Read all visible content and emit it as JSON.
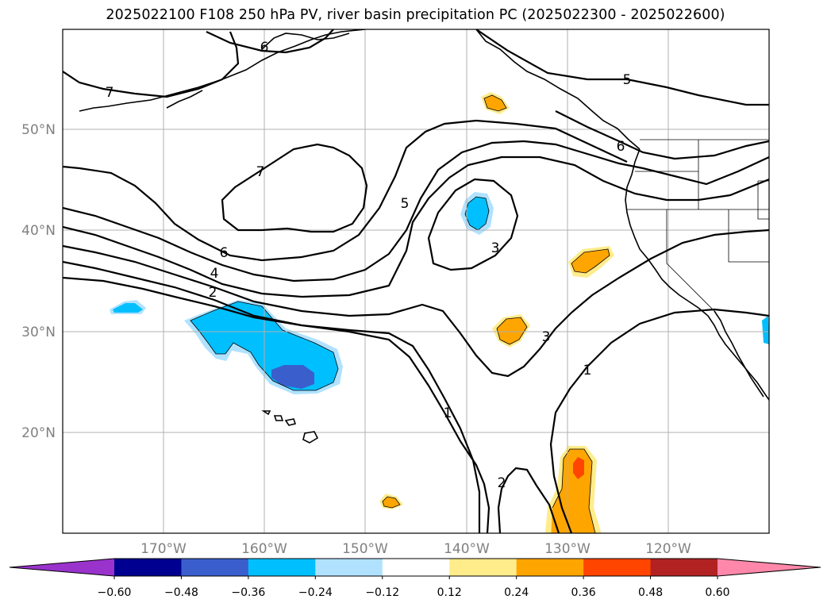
{
  "title": "2025022100 F108 250 hPa PV, river basin precipitation PC (2025022300 - 2025022600)",
  "lat_labels": [
    "50°N",
    "40°N",
    "30°N",
    "20°N"
  ],
  "lon_labels": [
    "170°W",
    "160°W",
    "150°W",
    "140°W",
    "130°W",
    "120°W"
  ],
  "pv_contour_labels": [
    "7",
    "6",
    "7",
    "5",
    "6",
    "5",
    "6",
    "4",
    "2",
    "3",
    "3",
    "1",
    "1",
    "2"
  ],
  "colorbar": {
    "ticks": [
      "−0.60",
      "−0.48",
      "−0.36",
      "−0.24",
      "−0.12",
      "0.12",
      "0.24",
      "0.36",
      "0.48",
      "0.60"
    ],
    "colors": [
      "#9933cc",
      "#000090",
      "#3a5fcd",
      "#00bfff",
      "#b0e2ff",
      "#ffffff",
      "#ffec8b",
      "#ffa500",
      "#ff4500",
      "#b22222",
      "#ff88aa"
    ]
  }
}
